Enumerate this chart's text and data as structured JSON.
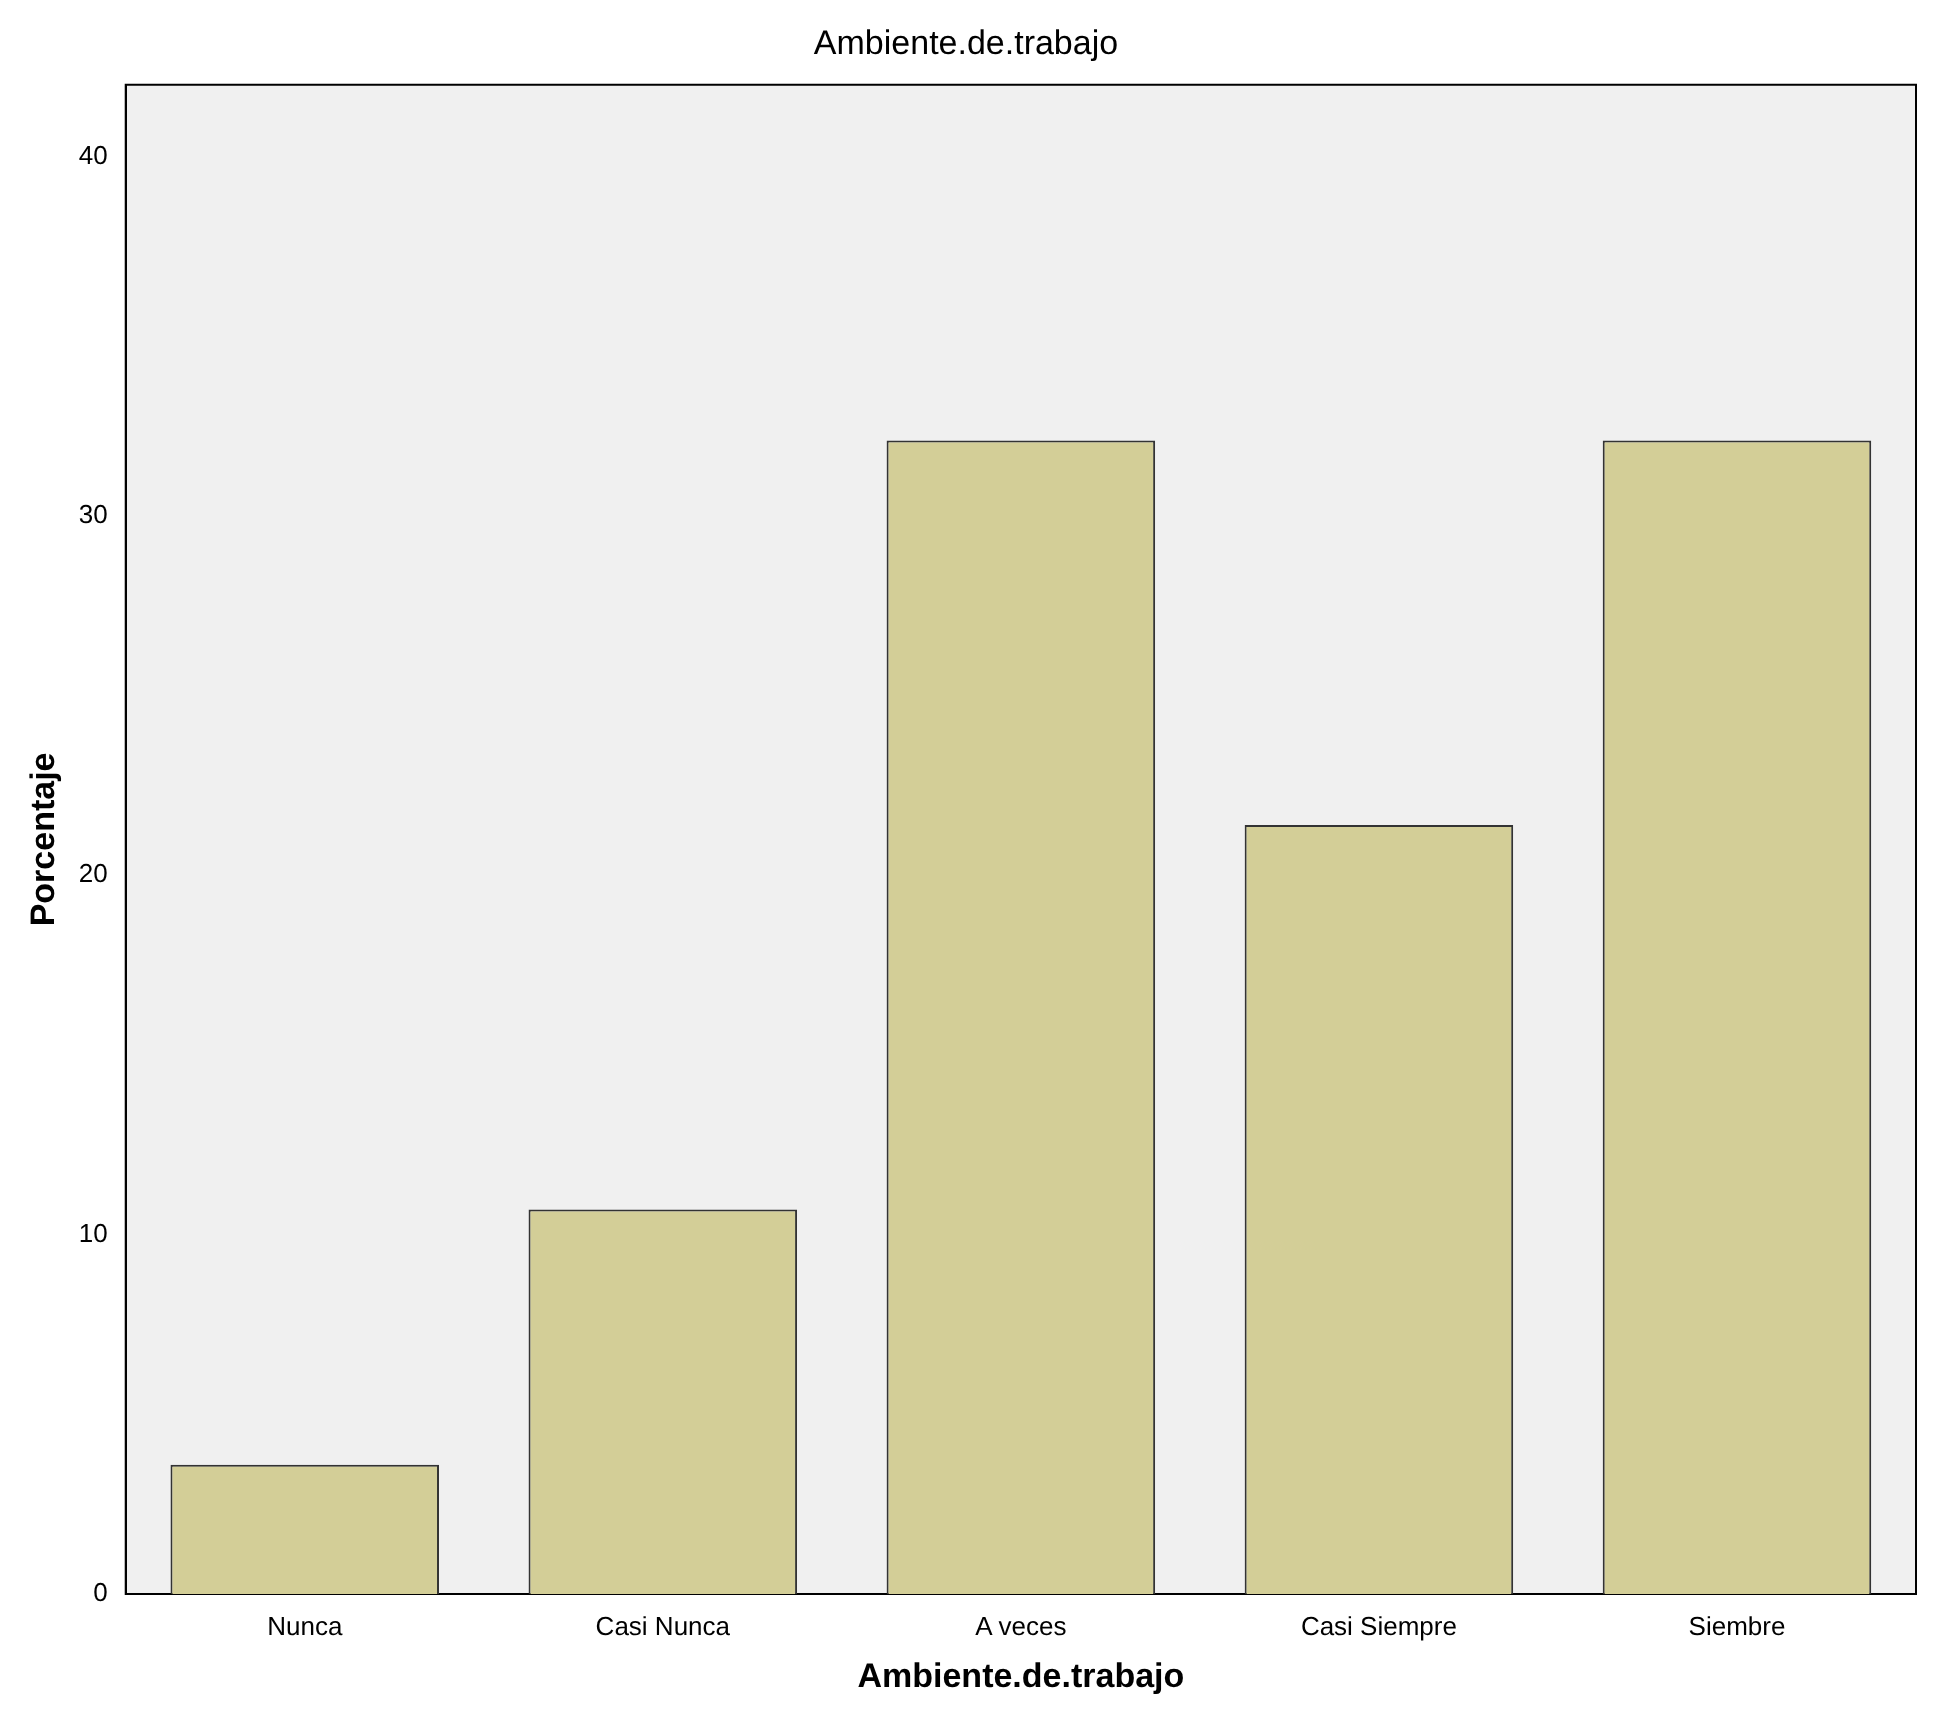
{
  "chart_data": {
    "type": "bar",
    "title": "Ambiente.de.trabajo",
    "xlabel": "Ambiente.de.trabajo",
    "ylabel": "Porcentaje",
    "categories": [
      "Nunca",
      "Casi Nunca",
      "A veces",
      "Casi Siempre",
      "Siembre"
    ],
    "values": [
      3.6,
      10.7,
      32.1,
      21.4,
      32.1
    ],
    "color": "#d3ce97",
    "ylim": [
      0,
      42
    ],
    "yticks": [
      0,
      10,
      20,
      30,
      40
    ],
    "grid": false,
    "legend": false
  }
}
